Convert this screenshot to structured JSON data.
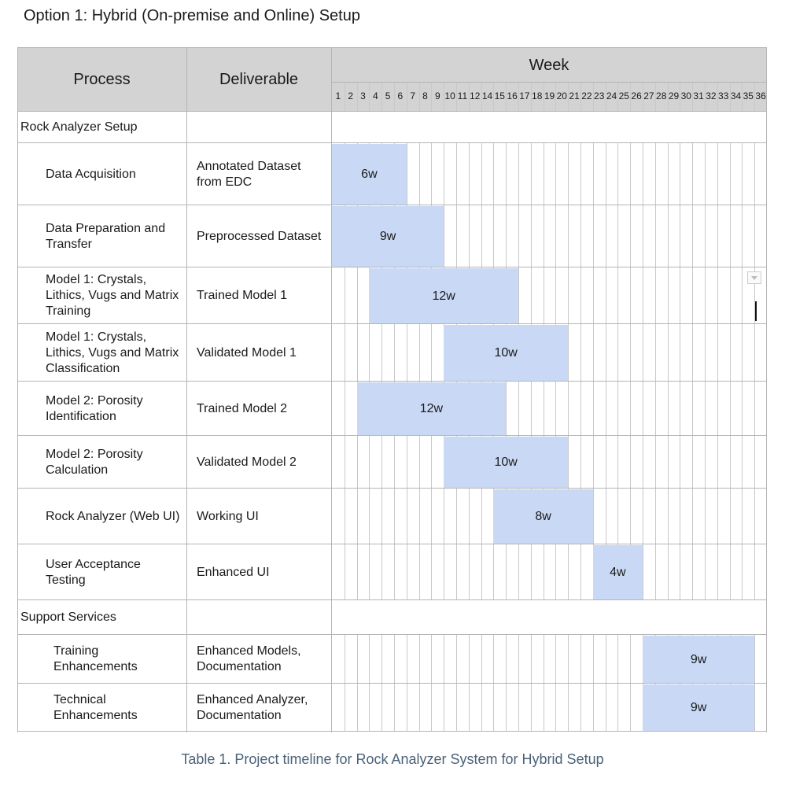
{
  "title": "Option 1: Hybrid (On-premise and Online) Setup",
  "header": {
    "process": "Process",
    "deliverable": "Deliverable",
    "week": "Week"
  },
  "weeks": [
    "1",
    "2",
    "3",
    "4",
    "5",
    "6",
    "7",
    "8",
    "9",
    "10",
    "11",
    "12",
    "14",
    "15",
    "16",
    "17",
    "18",
    "19",
    "20",
    "21",
    "22",
    "23",
    "24",
    "25",
    "26",
    "27",
    "28",
    "29",
    "30",
    "31",
    "32",
    "33",
    "34",
    "35",
    "36"
  ],
  "rows": [
    {
      "type": "section",
      "process": "Rock Analyzer Setup"
    },
    {
      "type": "task",
      "process": "Data Acquisition",
      "deliverable": "Annotated Dataset from EDC",
      "start_week": "1",
      "duration": "6w"
    },
    {
      "type": "task",
      "process": "Data Preparation and Transfer",
      "deliverable": "Preprocessed Dataset",
      "start_week": "1",
      "duration": "9w"
    },
    {
      "type": "task",
      "process": "Model 1: Crystals, Lithics, Vugs and Matrix Training",
      "deliverable": "Trained Model 1",
      "start_week": "4",
      "duration": "12w"
    },
    {
      "type": "task",
      "process": "Model 1: Crystals, Lithics, Vugs and Matrix Classification",
      "deliverable": "Validated Model 1",
      "start_week": "10",
      "duration": "10w"
    },
    {
      "type": "task",
      "process": "Model 2: Porosity Identification",
      "deliverable": "Trained Model 2",
      "start_week": "3",
      "duration": "12w"
    },
    {
      "type": "task",
      "process": "Model 2: Porosity Calculation",
      "deliverable": "Validated Model 2",
      "start_week": "10",
      "duration": "10w"
    },
    {
      "type": "task",
      "process": "Rock Analyzer (Web UI)",
      "deliverable": "Working UI",
      "start_week": "15",
      "duration": "8w"
    },
    {
      "type": "task",
      "process": "User Acceptance Testing",
      "deliverable": "Enhanced UI",
      "start_week": "23",
      "duration": "4w"
    },
    {
      "type": "section",
      "process": "Support Services"
    },
    {
      "type": "task",
      "process": "Training Enhancements",
      "deliverable": "Enhanced Models, Documentation",
      "start_week": "27",
      "duration": "9w"
    },
    {
      "type": "task",
      "process": "Technical Enhancements",
      "deliverable": "Enhanced Analyzer, Documentation",
      "start_week": "27",
      "duration": "9w"
    }
  ],
  "caption": "Table 1. Project timeline for Rock Analyzer System for Hybrid Setup",
  "colors": {
    "header_bg": "#d3d3d3",
    "bar": "#c9d8f4",
    "grid": "#c8c8c8",
    "caption": "#4a6278"
  }
}
